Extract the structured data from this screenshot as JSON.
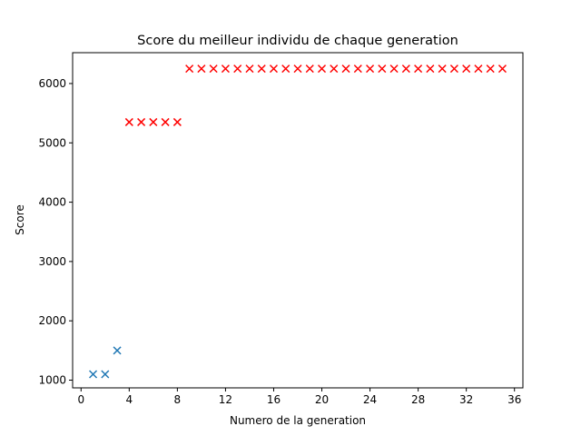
{
  "chart_data": {
    "type": "scatter",
    "title": "Score du meilleur individu de chaque generation",
    "xlabel": "Numero de la generation",
    "ylabel": "Score",
    "xlim": [
      -0.7,
      36.7
    ],
    "ylim": [
      870,
      6520
    ],
    "xticks": [
      0,
      4,
      8,
      12,
      16,
      20,
      24,
      28,
      32,
      36
    ],
    "xtick_labels": [
      "0",
      "4",
      "8",
      "12",
      "16",
      "20",
      "24",
      "28",
      "32",
      "36"
    ],
    "yticks": [
      1000,
      2000,
      3000,
      4000,
      5000,
      6000
    ],
    "ytick_labels": [
      "1000",
      "2000",
      "3000",
      "4000",
      "5000",
      "6000"
    ],
    "marker": "x",
    "grid": false,
    "series": [
      {
        "color": "#1f77b4",
        "x": [
          1,
          2,
          3
        ],
        "y": [
          1100,
          1100,
          1500
        ]
      },
      {
        "color": "#ff0000",
        "x": [
          4,
          5,
          6,
          7,
          8,
          9,
          10,
          11,
          12,
          13,
          14,
          15,
          16,
          17,
          18,
          19,
          20,
          21,
          22,
          23,
          24,
          25,
          26,
          27,
          28,
          29,
          30,
          31,
          32,
          33,
          34,
          35
        ],
        "y": [
          5350,
          5350,
          5350,
          5350,
          5350,
          6250,
          6250,
          6250,
          6250,
          6250,
          6250,
          6250,
          6250,
          6250,
          6250,
          6250,
          6250,
          6250,
          6250,
          6250,
          6250,
          6250,
          6250,
          6250,
          6250,
          6250,
          6250,
          6250,
          6250,
          6250,
          6250,
          6250
        ]
      }
    ]
  }
}
